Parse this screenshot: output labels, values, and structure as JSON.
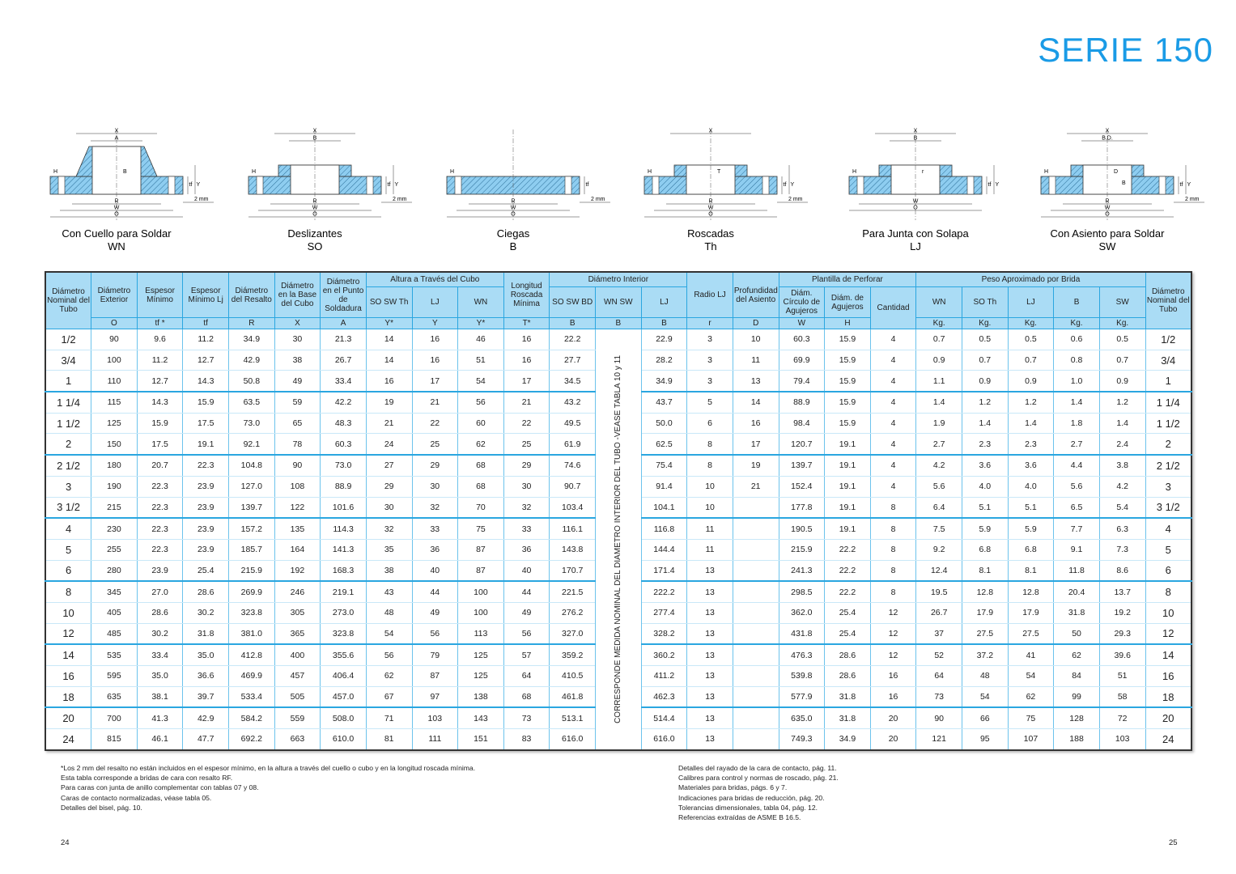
{
  "title": "SERIE 150",
  "diagrams": [
    {
      "name": "Con Cuello para Soldar",
      "code": "WN",
      "top": [
        "X",
        "A"
      ],
      "inner": [
        "B"
      ],
      "bottom": [
        "R",
        "W",
        "O"
      ],
      "left": [
        "H"
      ],
      "right": [
        "tf",
        "Y"
      ],
      "note": "2 mm"
    },
    {
      "name": "Deslizantes",
      "code": "SO",
      "top": [
        "X",
        "B"
      ],
      "inner": [],
      "bottom": [
        "R",
        "W",
        "O"
      ],
      "left": [
        "H"
      ],
      "right": [
        "tf",
        "Y"
      ],
      "note": "2 mm"
    },
    {
      "name": "Ciegas",
      "code": "B",
      "top": [],
      "inner": [],
      "bottom": [
        "R",
        "W",
        "O"
      ],
      "left": [
        "H"
      ],
      "right": [
        "tf"
      ],
      "note": "2 mm"
    },
    {
      "name": "Roscadas",
      "code": "Th",
      "top": [
        "X"
      ],
      "inner": [
        "T"
      ],
      "bottom": [
        "R",
        "W",
        "O"
      ],
      "left": [
        "H"
      ],
      "right": [
        "tf",
        "Y"
      ],
      "note": "2 mm"
    },
    {
      "name": "Para Junta con Solapa",
      "code": "LJ",
      "top": [
        "X",
        "B"
      ],
      "inner": [
        "r"
      ],
      "bottom": [
        "W",
        "O"
      ],
      "left": [
        "H"
      ],
      "right": [
        "tf",
        "Y"
      ],
      "note": null
    },
    {
      "name": "Con Asiento para Soldar",
      "code": "SW",
      "top": [
        "X",
        "B.D."
      ],
      "inner": [
        "D",
        "B"
      ],
      "bottom": [
        "R",
        "W",
        "O"
      ],
      "left": [
        "H"
      ],
      "right": [
        "tf",
        "Y"
      ],
      "note": "2 mm"
    }
  ],
  "table": {
    "groups": [
      "Altura a Través del Cubo",
      "Diámetro Interior",
      "Plantilla de Perforar",
      "Peso Aproximado por Brida"
    ],
    "columns": [
      {
        "label": "Diámetro Nominal del Tubo"
      },
      {
        "label": "Diámetro Exterior",
        "symbol": "O"
      },
      {
        "label": "Espesor Mínimo",
        "symbol": "tf *"
      },
      {
        "label": "Espesor Mínimo Lj",
        "symbol": "tf"
      },
      {
        "label": "Diámetro del Resalto",
        "symbol": "R"
      },
      {
        "label": "Diámetro en la Base del Cubo",
        "symbol": "X"
      },
      {
        "label": "Diámetro en el Punto de Soldadura",
        "symbol": "A"
      },
      {
        "label": "SO SW Th",
        "symbol": "Y*"
      },
      {
        "label": "LJ",
        "symbol": "Y"
      },
      {
        "label": "WN",
        "symbol": "Y*"
      },
      {
        "label": "Longitud Roscada Mínima",
        "symbol": "T*"
      },
      {
        "label": "SO SW BD",
        "symbol": "B"
      },
      {
        "label": "WN SW",
        "symbol": "B"
      },
      {
        "label": "LJ",
        "symbol": "B"
      },
      {
        "label": "Radio LJ",
        "symbol": "r"
      },
      {
        "label": "Profundidad del Asiento",
        "symbol": "D"
      },
      {
        "label": "Diám. Círculo de Agujeros",
        "symbol": "W"
      },
      {
        "label": "Diám. de Agujeros",
        "symbol": "H"
      },
      {
        "label": "Cantidad"
      },
      {
        "label": "WN",
        "symbol": "Kg."
      },
      {
        "label": "SO Th",
        "symbol": "Kg."
      },
      {
        "label": "LJ",
        "symbol": "Kg."
      },
      {
        "label": "B",
        "symbol": "Kg."
      },
      {
        "label": "SW",
        "symbol": "Kg."
      },
      {
        "label": "Diámetro Nominal del Tubo"
      }
    ],
    "vertical_note": "CORRESPONDE MEDIDA NOMINAL DEL DIAMETRO INTERIOR DEL TUBO -VEASE TABLA  10 y 11",
    "rows": [
      [
        "1/2",
        "90",
        "9.6",
        "11.2",
        "34.9",
        "30",
        "21.3",
        "14",
        "16",
        "46",
        "16",
        "22.2",
        "22.9",
        "3",
        "10",
        "60.3",
        "15.9",
        "4",
        "0.7",
        "0.5",
        "0.5",
        "0.6",
        "0.5"
      ],
      [
        "3/4",
        "100",
        "11.2",
        "12.7",
        "42.9",
        "38",
        "26.7",
        "14",
        "16",
        "51",
        "16",
        "27.7",
        "28.2",
        "3",
        "11",
        "69.9",
        "15.9",
        "4",
        "0.9",
        "0.7",
        "0.7",
        "0.8",
        "0.7"
      ],
      [
        "1",
        "110",
        "12.7",
        "14.3",
        "50.8",
        "49",
        "33.4",
        "16",
        "17",
        "54",
        "17",
        "34.5",
        "34.9",
        "3",
        "13",
        "79.4",
        "15.9",
        "4",
        "1.1",
        "0.9",
        "0.9",
        "1.0",
        "0.9"
      ],
      [
        "1 1/4",
        "115",
        "14.3",
        "15.9",
        "63.5",
        "59",
        "42.2",
        "19",
        "21",
        "56",
        "21",
        "43.2",
        "43.7",
        "5",
        "14",
        "88.9",
        "15.9",
        "4",
        "1.4",
        "1.2",
        "1.2",
        "1.4",
        "1.2"
      ],
      [
        "1 1/2",
        "125",
        "15.9",
        "17.5",
        "73.0",
        "65",
        "48.3",
        "21",
        "22",
        "60",
        "22",
        "49.5",
        "50.0",
        "6",
        "16",
        "98.4",
        "15.9",
        "4",
        "1.9",
        "1.4",
        "1.4",
        "1.8",
        "1.4"
      ],
      [
        "2",
        "150",
        "17.5",
        "19.1",
        "92.1",
        "78",
        "60.3",
        "24",
        "25",
        "62",
        "25",
        "61.9",
        "62.5",
        "8",
        "17",
        "120.7",
        "19.1",
        "4",
        "2.7",
        "2.3",
        "2.3",
        "2.7",
        "2.4"
      ],
      [
        "2 1/2",
        "180",
        "20.7",
        "22.3",
        "104.8",
        "90",
        "73.0",
        "27",
        "29",
        "68",
        "29",
        "74.6",
        "75.4",
        "8",
        "19",
        "139.7",
        "19.1",
        "4",
        "4.2",
        "3.6",
        "3.6",
        "4.4",
        "3.8"
      ],
      [
        "3",
        "190",
        "22.3",
        "23.9",
        "127.0",
        "108",
        "88.9",
        "29",
        "30",
        "68",
        "30",
        "90.7",
        "91.4",
        "10",
        "21",
        "152.4",
        "19.1",
        "4",
        "5.6",
        "4.0",
        "4.0",
        "5.6",
        "4.2"
      ],
      [
        "3 1/2",
        "215",
        "22.3",
        "23.9",
        "139.7",
        "122",
        "101.6",
        "30",
        "32",
        "70",
        "32",
        "103.4",
        "104.1",
        "10",
        null,
        "177.8",
        "19.1",
        "8",
        "6.4",
        "5.1",
        "5.1",
        "6.5",
        "5.4"
      ],
      [
        "4",
        "230",
        "22.3",
        "23.9",
        "157.2",
        "135",
        "114.3",
        "32",
        "33",
        "75",
        "33",
        "116.1",
        "116.8",
        "11",
        null,
        "190.5",
        "19.1",
        "8",
        "7.5",
        "5.9",
        "5.9",
        "7.7",
        "6.3"
      ],
      [
        "5",
        "255",
        "22.3",
        "23.9",
        "185.7",
        "164",
        "141.3",
        "35",
        "36",
        "87",
        "36",
        "143.8",
        "144.4",
        "11",
        null,
        "215.9",
        "22.2",
        "8",
        "9.2",
        "6.8",
        "6.8",
        "9.1",
        "7.3"
      ],
      [
        "6",
        "280",
        "23.9",
        "25.4",
        "215.9",
        "192",
        "168.3",
        "38",
        "40",
        "87",
        "40",
        "170.7",
        "171.4",
        "13",
        null,
        "241.3",
        "22.2",
        "8",
        "12.4",
        "8.1",
        "8.1",
        "11.8",
        "8.6"
      ],
      [
        "8",
        "345",
        "27.0",
        "28.6",
        "269.9",
        "246",
        "219.1",
        "43",
        "44",
        "100",
        "44",
        "221.5",
        "222.2",
        "13",
        null,
        "298.5",
        "22.2",
        "8",
        "19.5",
        "12.8",
        "12.8",
        "20.4",
        "13.7"
      ],
      [
        "10",
        "405",
        "28.6",
        "30.2",
        "323.8",
        "305",
        "273.0",
        "48",
        "49",
        "100",
        "49",
        "276.2",
        "277.4",
        "13",
        null,
        "362.0",
        "25.4",
        "12",
        "26.7",
        "17.9",
        "17.9",
        "31.8",
        "19.2"
      ],
      [
        "12",
        "485",
        "30.2",
        "31.8",
        "381.0",
        "365",
        "323.8",
        "54",
        "56",
        "113",
        "56",
        "327.0",
        "328.2",
        "13",
        null,
        "431.8",
        "25.4",
        "12",
        "37",
        "27.5",
        "27.5",
        "50",
        "29.3"
      ],
      [
        "14",
        "535",
        "33.4",
        "35.0",
        "412.8",
        "400",
        "355.6",
        "56",
        "79",
        "125",
        "57",
        "359.2",
        "360.2",
        "13",
        null,
        "476.3",
        "28.6",
        "12",
        "52",
        "37.2",
        "41",
        "62",
        "39.6"
      ],
      [
        "16",
        "595",
        "35.0",
        "36.6",
        "469.9",
        "457",
        "406.4",
        "62",
        "87",
        "125",
        "64",
        "410.5",
        "411.2",
        "13",
        null,
        "539.8",
        "28.6",
        "16",
        "64",
        "48",
        "54",
        "84",
        "51"
      ],
      [
        "18",
        "635",
        "38.1",
        "39.7",
        "533.4",
        "505",
        "457.0",
        "67",
        "97",
        "138",
        "68",
        "461.8",
        "462.3",
        "13",
        null,
        "577.9",
        "31.8",
        "16",
        "73",
        "54",
        "62",
        "99",
        "58"
      ],
      [
        "20",
        "700",
        "41.3",
        "42.9",
        "584.2",
        "559",
        "508.0",
        "71",
        "103",
        "143",
        "73",
        "513.1",
        "514.4",
        "13",
        null,
        "635.0",
        "31.8",
        "20",
        "90",
        "66",
        "75",
        "128",
        "72"
      ],
      [
        "24",
        "815",
        "46.1",
        "47.7",
        "692.2",
        "663",
        "610.0",
        "81",
        "111",
        "151",
        "83",
        "616.0",
        "616.0",
        "13",
        null,
        "749.3",
        "34.9",
        "20",
        "121",
        "95",
        "107",
        "188",
        "103"
      ]
    ]
  },
  "notes_left": [
    "*Los 2 mm del resalto no están incluidos en el espesor mínimo, en la altura a través del cuello o cubo y en la longitud roscada mínima.",
    "Esta tabla corresponde a bridas de cara con resalto RF.",
    "Para caras con junta de anillo complementar con tablas 07 y 08.",
    "Caras de contacto normalizadas, véase tabla 05.",
    "Detalles del bisel, pág. 10."
  ],
  "notes_right": [
    "Detalles del rayado de la cara de contacto,  pág. 11.",
    "Calibres para control y normas de roscado, pág. 21.",
    "Materiales para bridas, págs. 6 y 7.",
    "Indicaciones para bridas de reducción, pág. 20.",
    "Tolerancias dimensionales, tabla 04, pág. 12.",
    "Referencias extraídas de ASME B 16.5."
  ],
  "page_left": "24",
  "page_right": "25"
}
